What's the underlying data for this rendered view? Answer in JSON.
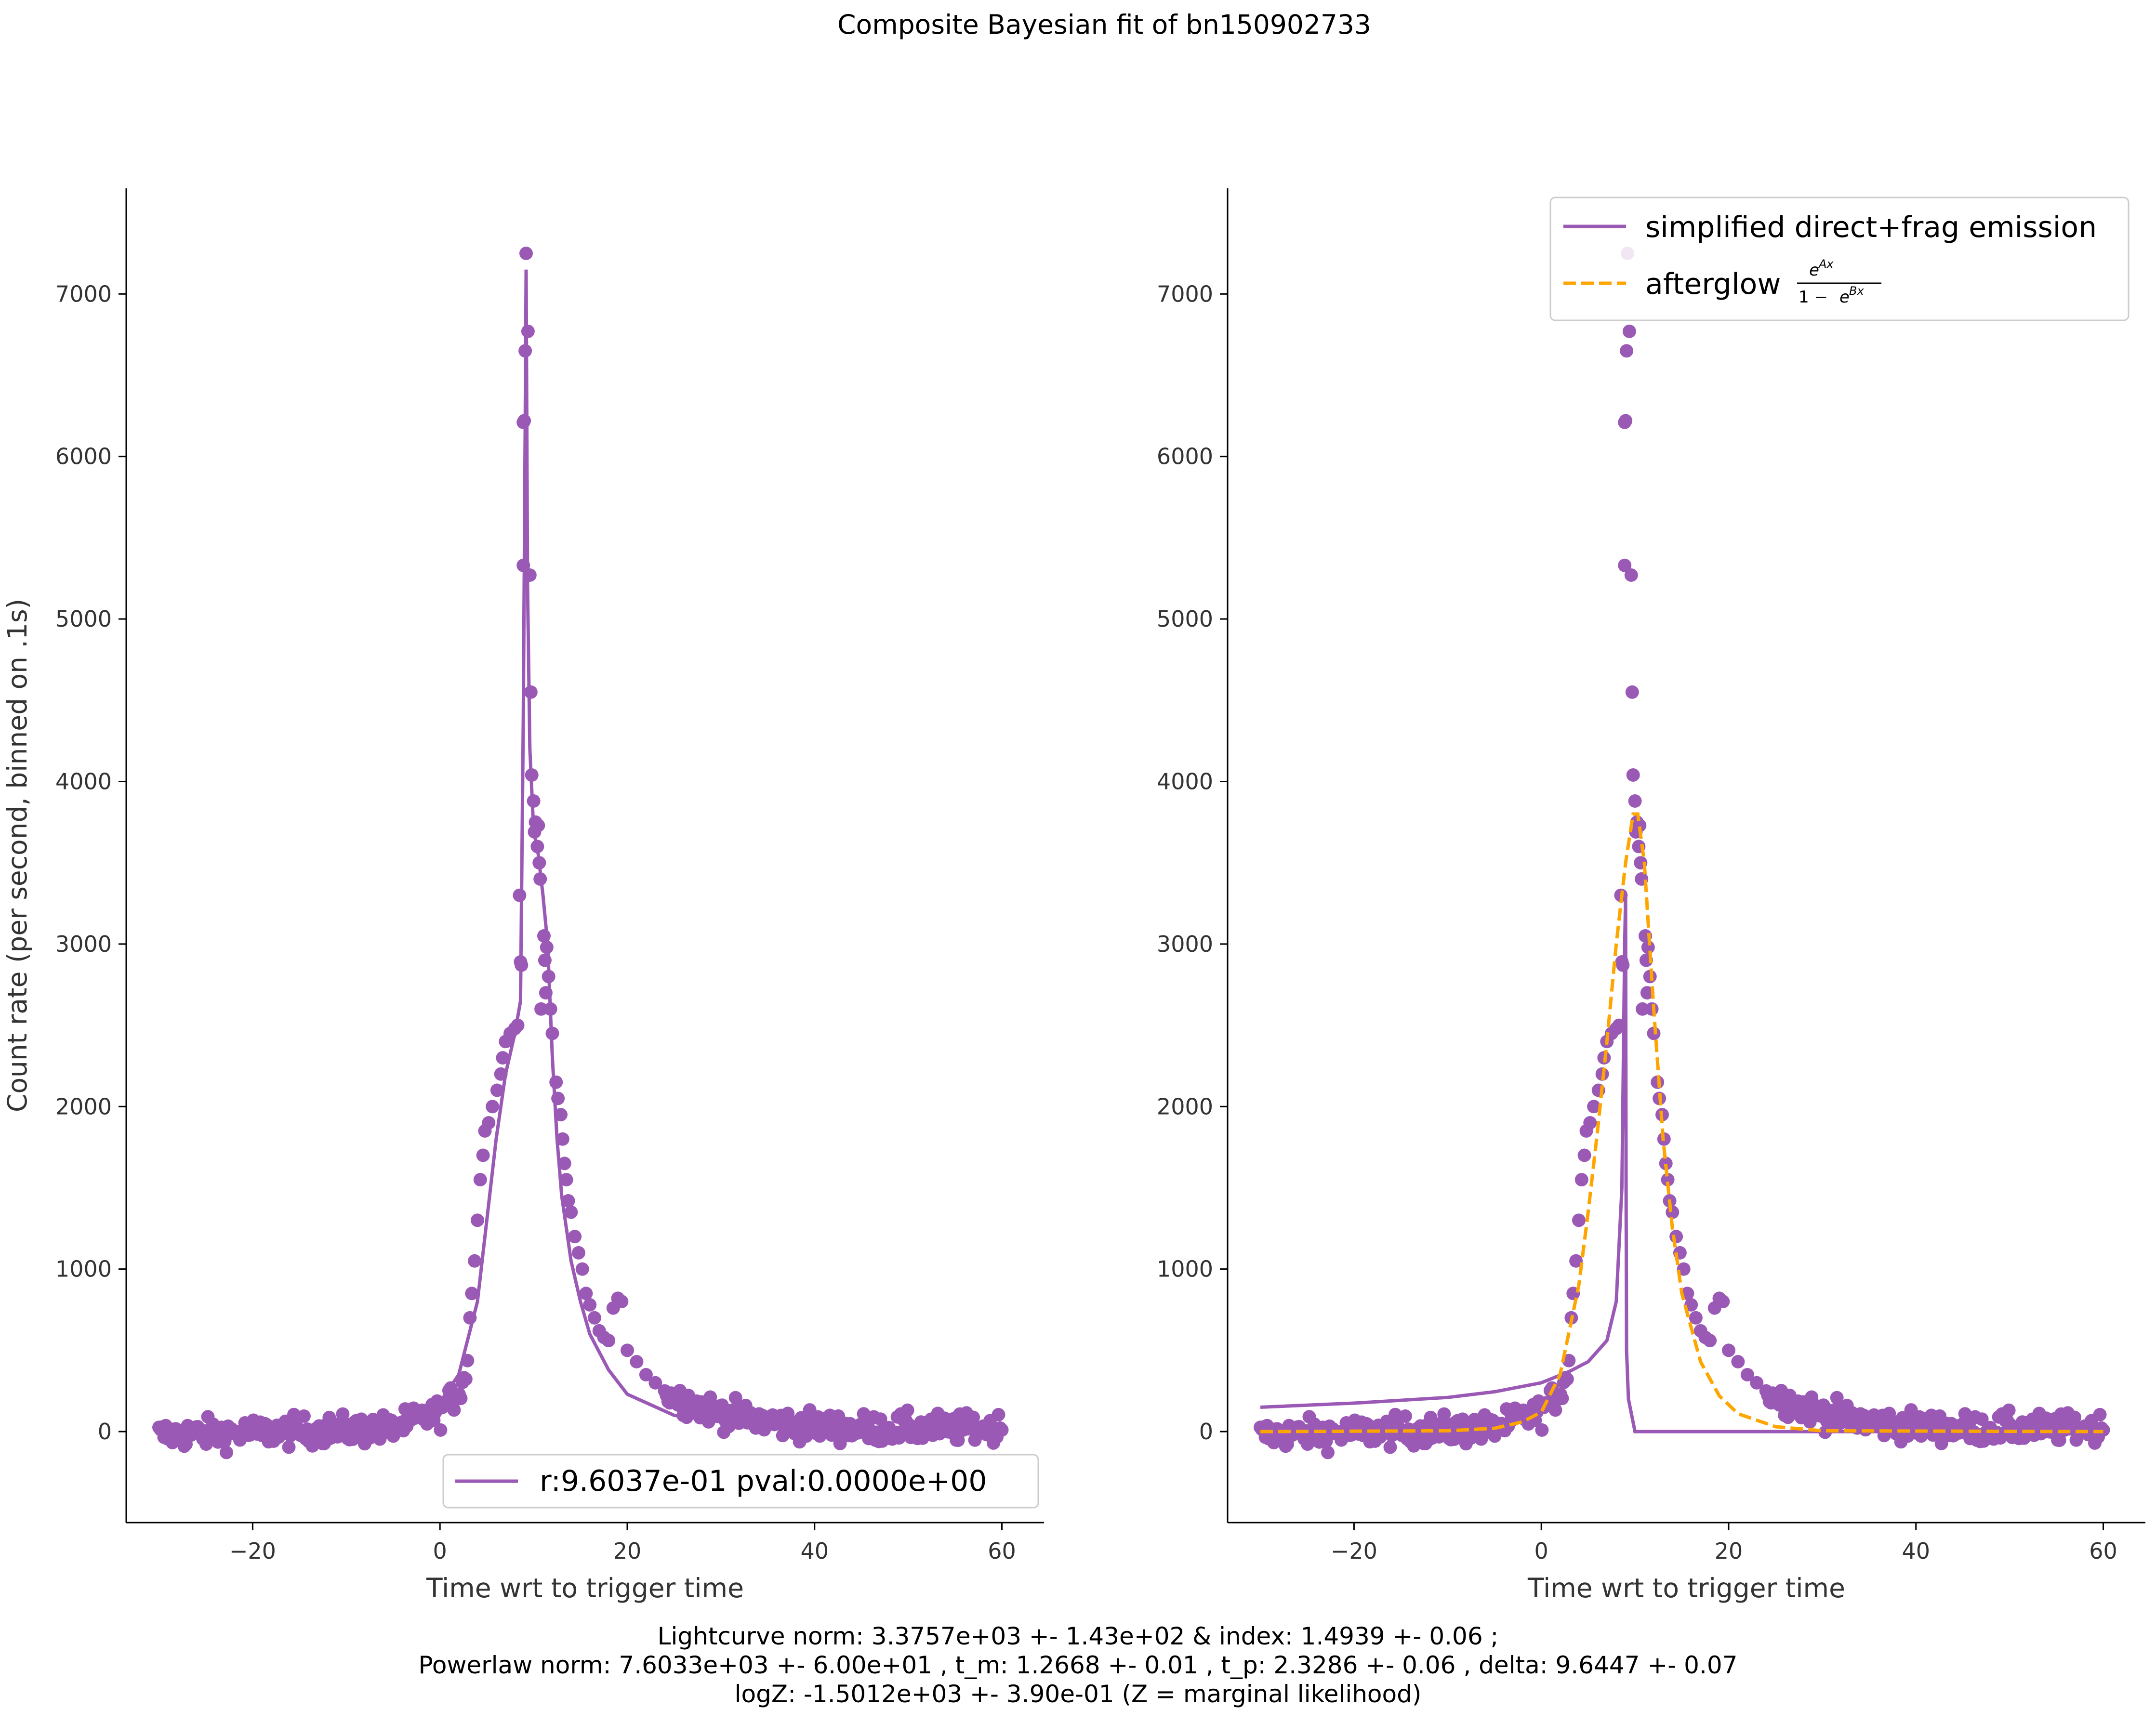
{
  "figure": {
    "suptitle": "Composite Bayesian fit of bn150902733",
    "footer": [
      "Lightcurve norm: 3.3757e+03 +- 1.43e+02 & index: 1.4939 +- 0.06 ;",
      "Powerlaw norm: 7.6033e+03 +- 6.00e+01 , t_m: 1.2668 +- 0.01 , t_p: 2.3286 +- 0.06 , delta: 9.6447 +- 0.07",
      "logZ: -1.5012e+03 +- 3.90e-01 (Z = marginal likelihood)"
    ],
    "colors": {
      "data": "#9b59b6",
      "fit": "#9b59b6",
      "afterglow": "#ffa500",
      "axis": "#000000",
      "text": "#333333"
    }
  },
  "chart_data": [
    {
      "type": "scatter",
      "panel": "left",
      "title": "",
      "xlabel": "Time wrt to trigger time",
      "ylabel": "Count rate (per second, binned on .1s)",
      "xlim": [
        -33.5,
        64.5
      ],
      "ylim": [
        -560,
        7650
      ],
      "xticks": [
        -20,
        0,
        20,
        40,
        60
      ],
      "xtick_labels": [
        "−20",
        "0",
        "20",
        "40",
        "60"
      ],
      "yticks": [
        0,
        1000,
        2000,
        3000,
        4000,
        5000,
        6000,
        7000
      ],
      "ytick_labels": [
        "0",
        "1000",
        "2000",
        "3000",
        "4000",
        "5000",
        "6000",
        "7000"
      ],
      "grid": false,
      "legend": {
        "placement": "lower-right",
        "entries": [
          {
            "label": "r:9.6037e-01  pval:0.0000e+00",
            "style": "solid"
          }
        ]
      },
      "scatter_peak_points": [
        [
          9.2,
          7250
        ],
        [
          9.4,
          6770
        ],
        [
          9.1,
          6650
        ],
        [
          8.9,
          6210
        ],
        [
          9.0,
          6220
        ],
        [
          8.9,
          5330
        ],
        [
          9.6,
          5270
        ],
        [
          9.7,
          4550
        ],
        [
          9.8,
          4040
        ],
        [
          10.0,
          3880
        ],
        [
          10.2,
          3750
        ],
        [
          10.5,
          3730
        ],
        [
          10.4,
          3600
        ],
        [
          10.1,
          3690
        ],
        [
          10.6,
          3500
        ],
        [
          10.7,
          3400
        ],
        [
          8.5,
          3300
        ],
        [
          11.1,
          3050
        ],
        [
          11.4,
          2980
        ],
        [
          11.2,
          2900
        ],
        [
          11.6,
          2800
        ],
        [
          11.3,
          2700
        ],
        [
          10.8,
          2600
        ],
        [
          11.8,
          2600
        ],
        [
          12.0,
          2450
        ],
        [
          8.6,
          2890
        ],
        [
          8.7,
          2870
        ],
        [
          8.3,
          2500
        ],
        [
          8.0,
          2480
        ],
        [
          7.5,
          2450
        ],
        [
          7.0,
          2400
        ],
        [
          6.7,
          2300
        ],
        [
          6.5,
          2200
        ],
        [
          6.1,
          2100
        ],
        [
          5.6,
          2000
        ],
        [
          5.2,
          1900
        ],
        [
          4.8,
          1850
        ],
        [
          4.6,
          1700
        ],
        [
          4.3,
          1550
        ],
        [
          4.0,
          1300
        ],
        [
          3.7,
          1050
        ],
        [
          3.4,
          850
        ],
        [
          3.2,
          700
        ],
        [
          12.4,
          2150
        ],
        [
          12.6,
          2050
        ],
        [
          12.9,
          1950
        ],
        [
          13.1,
          1800
        ],
        [
          13.3,
          1650
        ],
        [
          13.5,
          1550
        ],
        [
          13.7,
          1420
        ],
        [
          14.0,
          1350
        ],
        [
          14.4,
          1200
        ],
        [
          14.8,
          1100
        ],
        [
          15.2,
          1000
        ],
        [
          15.6,
          850
        ],
        [
          16.0,
          780
        ],
        [
          16.5,
          700
        ],
        [
          17.0,
          620
        ],
        [
          17.5,
          580
        ],
        [
          18.0,
          560
        ],
        [
          18.5,
          760
        ],
        [
          19.0,
          820
        ],
        [
          19.4,
          800
        ],
        [
          20.0,
          500
        ],
        [
          21.0,
          430
        ],
        [
          22.0,
          350
        ],
        [
          23.0,
          300
        ],
        [
          24.0,
          250
        ]
      ],
      "fit_line_points": [
        [
          -30,
          -20
        ],
        [
          -20,
          -10
        ],
        [
          -10,
          20
        ],
        [
          -5,
          70
        ],
        [
          0,
          180
        ],
        [
          2,
          350
        ],
        [
          4,
          800
        ],
        [
          5,
          1300
        ],
        [
          6,
          1800
        ],
        [
          7,
          2200
        ],
        [
          8,
          2450
        ],
        [
          8.6,
          2650
        ],
        [
          8.9,
          4400
        ],
        [
          9.1,
          6200
        ],
        [
          9.2,
          7150
        ],
        [
          9.35,
          5200
        ],
        [
          9.6,
          4200
        ],
        [
          10,
          3700
        ],
        [
          10.5,
          3550
        ],
        [
          11,
          3300
        ],
        [
          11.5,
          3000
        ],
        [
          12,
          2300
        ],
        [
          12.5,
          1800
        ],
        [
          13,
          1450
        ],
        [
          14,
          1050
        ],
        [
          15,
          800
        ],
        [
          16,
          600
        ],
        [
          18,
          380
        ],
        [
          20,
          230
        ],
        [
          25,
          100
        ],
        [
          30,
          60
        ],
        [
          40,
          30
        ],
        [
          60,
          20
        ]
      ],
      "noise_band": {
        "x_range": [
          -30,
          60
        ],
        "center_before_trigger": 0,
        "spread": 80
      }
    },
    {
      "type": "scatter",
      "panel": "right",
      "title": "",
      "xlabel": "Time wrt to trigger time",
      "ylabel": "",
      "xlim": [
        -33.5,
        64.5
      ],
      "ylim": [
        -560,
        7650
      ],
      "xticks": [
        -20,
        0,
        20,
        40,
        60
      ],
      "xtick_labels": [
        "−20",
        "0",
        "20",
        "40",
        "60"
      ],
      "yticks": [
        0,
        1000,
        2000,
        3000,
        4000,
        5000,
        6000,
        7000
      ],
      "ytick_labels": [
        "0",
        "1000",
        "2000",
        "3000",
        "4000",
        "5000",
        "6000",
        "7000"
      ],
      "grid": false,
      "legend": {
        "placement": "upper-right",
        "entries": [
          {
            "label": "simplified direct+frag emission",
            "style": "solid"
          },
          {
            "label": "afterglow",
            "style": "dashed"
          }
        ]
      },
      "direct_frag_line_points": [
        [
          -30,
          150
        ],
        [
          -20,
          175
        ],
        [
          -10,
          210
        ],
        [
          -5,
          245
        ],
        [
          0,
          300
        ],
        [
          3,
          370
        ],
        [
          5,
          430
        ],
        [
          7,
          560
        ],
        [
          8,
          800
        ],
        [
          8.6,
          1500
        ],
        [
          8.9,
          3000
        ],
        [
          9.0,
          3300
        ],
        [
          9.05,
          1500
        ],
        [
          9.1,
          500
        ],
        [
          9.3,
          200
        ],
        [
          10,
          0
        ],
        [
          60,
          0
        ]
      ],
      "afterglow_line_points": [
        [
          -30,
          0
        ],
        [
          -10,
          5
        ],
        [
          -5,
          20
        ],
        [
          -2,
          60
        ],
        [
          0,
          120
        ],
        [
          2,
          350
        ],
        [
          4,
          900
        ],
        [
          5,
          1350
        ],
        [
          6,
          1850
        ],
        [
          7,
          2400
        ],
        [
          8,
          3000
        ],
        [
          9,
          3500
        ],
        [
          9.8,
          3800
        ],
        [
          10.3,
          3800
        ],
        [
          11,
          3500
        ],
        [
          12,
          2600
        ],
        [
          13,
          1800
        ],
        [
          14,
          1250
        ],
        [
          15,
          850
        ],
        [
          17,
          430
        ],
        [
          19,
          220
        ],
        [
          21,
          110
        ],
        [
          25,
          30
        ],
        [
          30,
          5
        ],
        [
          60,
          0
        ]
      ],
      "scatter_peak_points": "same as left panel"
    }
  ]
}
